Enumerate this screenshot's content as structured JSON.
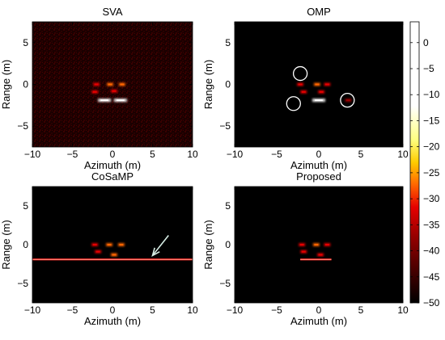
{
  "chart_data": [
    {
      "type": "heatmap",
      "title": "SVA",
      "xlabel": "Azimuth (m)",
      "ylabel": "Range (m)",
      "xlim": [
        -10,
        10
      ],
      "ylim": [
        -7.5,
        7.5
      ],
      "xticks": [
        -10,
        -5,
        0,
        5,
        10
      ],
      "yticks": [
        5,
        0,
        -5
      ],
      "background_noise": "speckle",
      "targets": [
        {
          "x": -2.0,
          "y": 0.0,
          "level": -35
        },
        {
          "x": -0.3,
          "y": 0.0,
          "level": -30
        },
        {
          "x": 1.2,
          "y": 0.0,
          "level": -33
        },
        {
          "x": -2.2,
          "y": -0.9,
          "level": -36
        },
        {
          "x": 0.2,
          "y": -0.8,
          "level": -35
        },
        {
          "x": -1.0,
          "y": -1.9,
          "level": -8
        },
        {
          "x": 1.0,
          "y": -1.9,
          "level": -10
        }
      ]
    },
    {
      "type": "heatmap",
      "title": "OMP",
      "xlabel": "Azimuth (m)",
      "ylabel": "Range (m)",
      "xlim": [
        -10,
        10
      ],
      "ylim": [
        -7.5,
        7.5
      ],
      "xticks": [
        -10,
        -5,
        0,
        5,
        10
      ],
      "yticks": [
        5,
        0,
        -5
      ],
      "targets": [
        {
          "x": -2.2,
          "y": 0.0,
          "level": -38
        },
        {
          "x": -0.2,
          "y": 0.0,
          "level": -34
        },
        {
          "x": 1.0,
          "y": 0.0,
          "level": -36
        },
        {
          "x": -1.8,
          "y": -0.9,
          "level": -38
        },
        {
          "x": 0.3,
          "y": -0.9,
          "level": -38
        },
        {
          "x": 0.0,
          "y": -1.9,
          "level": -12
        },
        {
          "x": 3.5,
          "y": -1.9,
          "level": -42
        }
      ],
      "annotations": [
        {
          "shape": "circle",
          "x": -2.2,
          "y": 1.3
        },
        {
          "shape": "circle",
          "x": -3.0,
          "y": -2.3
        },
        {
          "shape": "circle",
          "x": 3.4,
          "y": -1.9
        }
      ]
    },
    {
      "type": "heatmap",
      "title": "CoSaMP",
      "xlabel": "Azimuth (m)",
      "ylabel": "Range (m)",
      "xlim": [
        -10,
        10
      ],
      "ylim": [
        -7.5,
        7.5
      ],
      "xticks": [
        -10,
        -5,
        0,
        5,
        10
      ],
      "yticks": [
        5,
        0,
        -5
      ],
      "targets": [
        {
          "x": -2.2,
          "y": 0.0,
          "level": -35
        },
        {
          "x": -0.4,
          "y": 0.0,
          "level": -32
        },
        {
          "x": 1.1,
          "y": 0.0,
          "level": -34
        },
        {
          "x": -1.8,
          "y": -0.9,
          "level": -38
        },
        {
          "x": 0.2,
          "y": -1.3,
          "level": -30
        }
      ],
      "line_artifact": {
        "y": -1.9,
        "x_from": -10,
        "x_to": 10
      },
      "annotations": [
        {
          "shape": "arrow",
          "x_from": 7.0,
          "y_from": 1.2,
          "x_to": 5.0,
          "y_to": -1.4
        }
      ]
    },
    {
      "type": "heatmap",
      "title": "Proposed",
      "xlabel": "Azimuth (m)",
      "ylabel": "Range (m)",
      "xlim": [
        -10,
        10
      ],
      "ylim": [
        -7.5,
        7.5
      ],
      "xticks": [
        -10,
        -5,
        0,
        5,
        10
      ],
      "yticks": [
        5,
        0,
        -5
      ],
      "targets": [
        {
          "x": -2.0,
          "y": 0.0,
          "level": -36
        },
        {
          "x": -0.3,
          "y": 0.0,
          "level": -32
        },
        {
          "x": 1.0,
          "y": 0.0,
          "level": -36
        },
        {
          "x": -1.8,
          "y": -0.9,
          "level": -38
        },
        {
          "x": 0.2,
          "y": -1.3,
          "level": -35
        }
      ],
      "line_artifact": {
        "y": -1.9,
        "x_from": -2.2,
        "x_to": 1.5
      }
    }
  ],
  "colorbar": {
    "ticks": [
      0,
      -5,
      -10,
      -15,
      -20,
      -25,
      -30,
      -35,
      -40,
      -45,
      -50
    ],
    "range": [
      -50,
      4
    ],
    "colormap": [
      "#000000",
      "#4a0000",
      "#990000",
      "#e60000",
      "#ff6600",
      "#ffcc00",
      "#ffff80",
      "#ffffff"
    ]
  }
}
